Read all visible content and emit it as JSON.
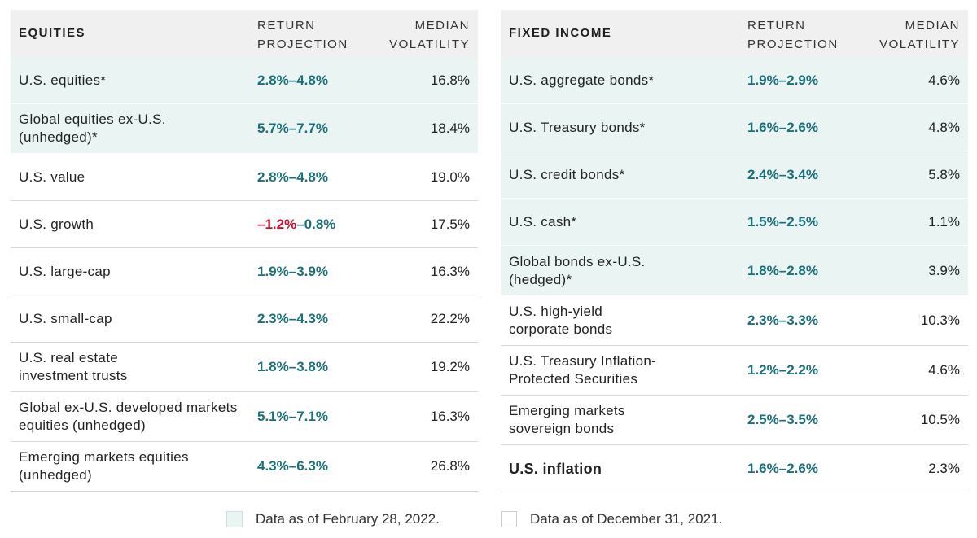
{
  "equities": {
    "header": {
      "category": "EQUITIES",
      "return_l1": "RETURN",
      "return_l2": "PROJECTION",
      "vol_l1": "MEDIAN",
      "vol_l2": "VOLATILITY"
    },
    "rows": [
      {
        "name": "U.S. equities*",
        "ret": "2.8%–4.8%",
        "vol": "16.8%",
        "highlight": true
      },
      {
        "name": "Global equities ex-U.S. (unhedged)*",
        "ret": "5.7%–7.7%",
        "vol": "18.4%",
        "highlight": true
      },
      {
        "name": "U.S. value",
        "ret": "2.8%–4.8%",
        "vol": "19.0%",
        "highlight": false
      },
      {
        "name": "U.S. growth",
        "ret_neg": "–1.2%",
        "ret_rest": "–0.8%",
        "vol": "17.5%",
        "highlight": false
      },
      {
        "name": "U.S. large-cap",
        "ret": "1.9%–3.9%",
        "vol": "16.3%",
        "highlight": false
      },
      {
        "name": "U.S. small-cap",
        "ret": "2.3%–4.3%",
        "vol": "22.2%",
        "highlight": false
      },
      {
        "name": "U.S. real estate investment trusts",
        "ret": "1.8%–3.8%",
        "vol": "19.2%",
        "highlight": false
      },
      {
        "name": "Global ex-U.S. developed markets equities (unhedged)",
        "ret": "5.1%–7.1%",
        "vol": "16.3%",
        "highlight": false
      },
      {
        "name": "Emerging markets equities (unhedged)",
        "ret": "4.3%–6.3%",
        "vol": "26.8%",
        "highlight": false
      }
    ]
  },
  "fixed_income": {
    "header": {
      "category": "FIXED INCOME",
      "return_l1": "RETURN",
      "return_l2": "PROJECTION",
      "vol_l1": "MEDIAN",
      "vol_l2": "VOLATILITY"
    },
    "rows": [
      {
        "name": "U.S. aggregate bonds*",
        "ret": "1.9%–2.9%",
        "vol": "4.6%",
        "highlight": true
      },
      {
        "name": "U.S. Treasury bonds*",
        "ret": "1.6%–2.6%",
        "vol": "4.8%",
        "highlight": true
      },
      {
        "name": "U.S. credit bonds*",
        "ret": "2.4%–3.4%",
        "vol": "5.8%",
        "highlight": true
      },
      {
        "name": "U.S. cash*",
        "ret": "1.5%–2.5%",
        "vol": "1.1%",
        "highlight": true
      },
      {
        "name": "Global bonds ex-U.S. (hedged)*",
        "ret": "1.8%–2.8%",
        "vol": "3.9%",
        "highlight": true
      },
      {
        "name": "U.S. high-yield corporate bonds",
        "ret": "2.3%–3.3%",
        "vol": "10.3%",
        "highlight": false
      },
      {
        "name": "U.S. Treasury Inflation-Protected Securities",
        "ret": "1.2%–2.2%",
        "vol": "4.6%",
        "highlight": false
      },
      {
        "name": "Emerging markets sovereign bonds",
        "ret": "2.5%–3.5%",
        "vol": "10.5%",
        "highlight": false
      },
      {
        "name": "U.S. inflation",
        "ret": "1.6%–2.6%",
        "vol": "2.3%",
        "highlight": false,
        "bold": true
      }
    ]
  },
  "legend": {
    "highlighted_label": "Data as of February 28, 2022.",
    "plain_label": "Data as of December 31, 2021."
  },
  "colors": {
    "highlight_bg": "#e9f4f3",
    "return_teal": "#1b6f79",
    "negative_red": "#c8102e"
  }
}
